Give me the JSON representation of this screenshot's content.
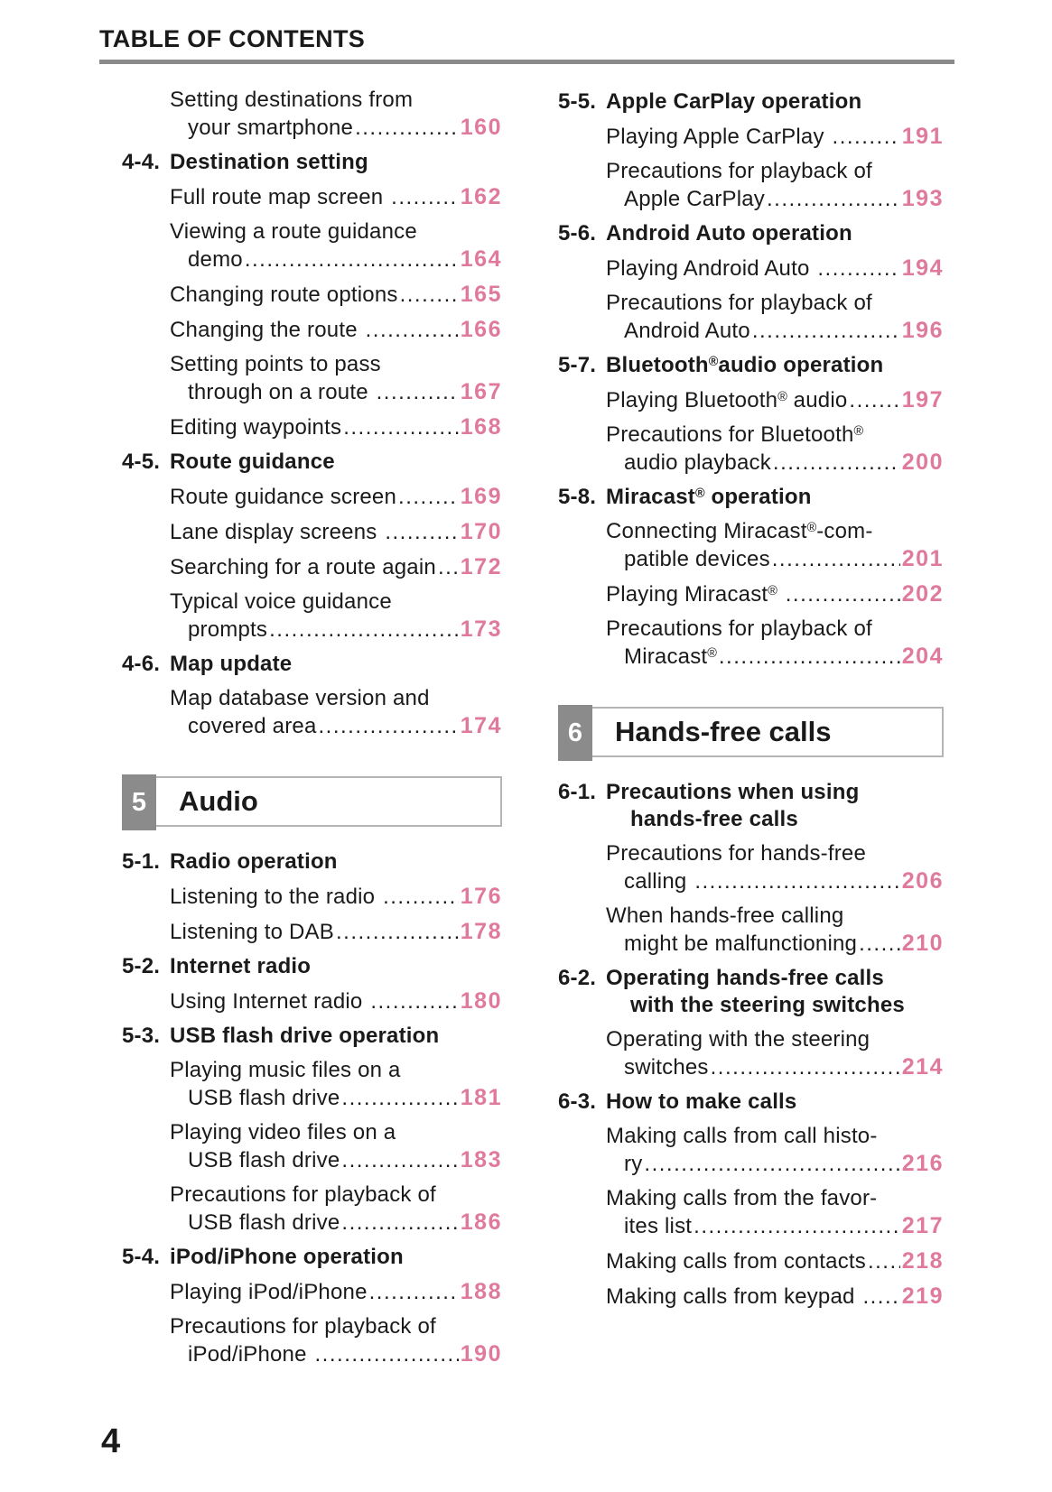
{
  "page": {
    "title": "TABLE OF CONTENTS",
    "page_number": "4"
  },
  "colors": {
    "page_number_pink": "#e07a9c",
    "chapter_tab_gray": "#8b8b8b",
    "chapter_border_gray": "#b5b5b5",
    "rule_gray": "#8a8a8a",
    "text_black": "#1a1a1a"
  },
  "columns": [
    {
      "blocks": [
        {
          "type": "entry",
          "lines": [
            "Setting destinations from",
            "your smartphone"
          ],
          "page": "160"
        },
        {
          "type": "section",
          "number": "4-4.",
          "title_lines": [
            "Destination setting"
          ]
        },
        {
          "type": "entry",
          "lines": [
            "Full route map screen "
          ],
          "page": "162"
        },
        {
          "type": "entry",
          "lines": [
            "Viewing a route guidance",
            "demo"
          ],
          "page": "164"
        },
        {
          "type": "entry",
          "lines": [
            "Changing route options"
          ],
          "page": "165"
        },
        {
          "type": "entry",
          "lines": [
            "Changing the route "
          ],
          "page": "166"
        },
        {
          "type": "entry",
          "lines": [
            "Setting points to pass",
            "through on a route "
          ],
          "page": "167"
        },
        {
          "type": "entry",
          "lines": [
            "Editing waypoints"
          ],
          "page": "168"
        },
        {
          "type": "section",
          "number": "4-5.",
          "title_lines": [
            "Route guidance"
          ]
        },
        {
          "type": "entry",
          "lines": [
            "Route guidance screen"
          ],
          "page": "169"
        },
        {
          "type": "entry",
          "lines": [
            "Lane display screens "
          ],
          "page": "170"
        },
        {
          "type": "entry",
          "lines": [
            "Searching for a route again"
          ],
          "page": "172"
        },
        {
          "type": "entry",
          "lines": [
            "Typical voice guidance",
            "prompts"
          ],
          "page": "173"
        },
        {
          "type": "section",
          "number": "4-6.",
          "title_lines": [
            "Map update"
          ]
        },
        {
          "type": "entry",
          "lines": [
            "Map database version and",
            "covered area"
          ],
          "page": "174"
        },
        {
          "type": "chapter",
          "number": "5",
          "title": "Audio"
        },
        {
          "type": "section",
          "number": "5-1.",
          "title_lines": [
            "Radio operation"
          ]
        },
        {
          "type": "entry",
          "lines": [
            "Listening to the radio "
          ],
          "page": "176"
        },
        {
          "type": "entry",
          "lines": [
            "Listening to DAB"
          ],
          "page": "178"
        },
        {
          "type": "section",
          "number": "5-2.",
          "title_lines": [
            "Internet radio"
          ]
        },
        {
          "type": "entry",
          "lines": [
            "Using Internet radio "
          ],
          "page": "180"
        },
        {
          "type": "section",
          "number": "5-3.",
          "title_lines": [
            "USB flash drive operation"
          ]
        },
        {
          "type": "entry",
          "lines": [
            "Playing music files on a",
            "USB flash drive"
          ],
          "page": "181"
        },
        {
          "type": "entry",
          "lines": [
            "Playing video files on a",
            "USB flash drive"
          ],
          "page": "183"
        },
        {
          "type": "entry",
          "lines": [
            "Precautions for playback of",
            "USB flash drive"
          ],
          "page": "186"
        },
        {
          "type": "section",
          "number": "5-4.",
          "title_lines": [
            "iPod/iPhone operation"
          ]
        },
        {
          "type": "entry",
          "lines": [
            "Playing iPod/iPhone"
          ],
          "page": "188"
        },
        {
          "type": "entry",
          "lines": [
            "Precautions for playback of",
            "iPod/iPhone "
          ],
          "page": "190"
        }
      ]
    },
    {
      "blocks": [
        {
          "type": "section",
          "number": "5-5.",
          "title_lines": [
            "Apple CarPlay operation"
          ]
        },
        {
          "type": "entry",
          "lines": [
            "Playing Apple CarPlay "
          ],
          "page": "191"
        },
        {
          "type": "entry",
          "lines": [
            "Precautions for playback of",
            "Apple CarPlay"
          ],
          "page": "193"
        },
        {
          "type": "section",
          "number": "5-6.",
          "title_lines": [
            "Android Auto operation"
          ]
        },
        {
          "type": "entry",
          "lines": [
            "Playing Android Auto "
          ],
          "page": "194"
        },
        {
          "type": "entry",
          "lines": [
            "Precautions for playback of",
            "Android Auto"
          ],
          "page": "196"
        },
        {
          "type": "section",
          "number": "5-7.",
          "title_lines": [
            "Bluetooth®audio operation"
          ]
        },
        {
          "type": "entry",
          "lines": [
            "Playing Bluetooth® audio"
          ],
          "page": "197"
        },
        {
          "type": "entry",
          "lines": [
            "Precautions for Bluetooth®",
            "audio playback"
          ],
          "page": "200"
        },
        {
          "type": "section",
          "number": "5-8.",
          "title_lines": [
            "Miracast® operation"
          ]
        },
        {
          "type": "entry",
          "lines": [
            "Connecting Miracast®-com-",
            "patible devices"
          ],
          "page": "201"
        },
        {
          "type": "entry",
          "lines": [
            "Playing Miracast® "
          ],
          "page": "202"
        },
        {
          "type": "entry",
          "lines": [
            "Precautions for playback of",
            "Miracast®"
          ],
          "page": "204"
        },
        {
          "type": "chapter",
          "number": "6",
          "title": "Hands-free calls"
        },
        {
          "type": "section",
          "number": "6-1.",
          "title_lines": [
            "Precautions when using",
            "hands-free calls"
          ]
        },
        {
          "type": "entry",
          "lines": [
            "Precautions for hands-free",
            "calling "
          ],
          "page": "206"
        },
        {
          "type": "entry",
          "lines": [
            "When hands-free calling",
            "might be malfunctioning"
          ],
          "page": "210"
        },
        {
          "type": "section",
          "number": "6-2.",
          "title_lines": [
            "Operating hands-free calls",
            "with the steering switches"
          ]
        },
        {
          "type": "entry",
          "lines": [
            "Operating with the steering",
            "switches"
          ],
          "page": "214"
        },
        {
          "type": "section",
          "number": "6-3.",
          "title_lines": [
            "How to make calls"
          ]
        },
        {
          "type": "entry",
          "lines": [
            "Making calls from call histo-",
            "ry"
          ],
          "page": "216"
        },
        {
          "type": "entry",
          "lines": [
            "Making calls from the favor-",
            "ites list"
          ],
          "page": "217"
        },
        {
          "type": "entry",
          "lines": [
            "Making calls from contacts"
          ],
          "page": "218"
        },
        {
          "type": "entry",
          "lines": [
            "Making calls from keypad "
          ],
          "page": "219"
        }
      ]
    }
  ]
}
